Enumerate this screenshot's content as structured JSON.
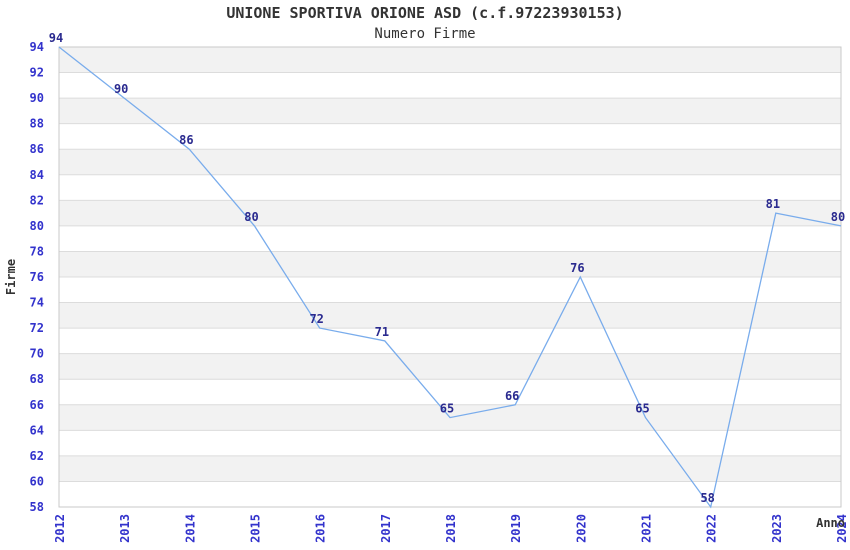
{
  "chart_data": {
    "type": "line",
    "title": "UNIONE SPORTIVA ORIONE ASD (c.f.97223930153)",
    "subtitle": "Numero Firme",
    "xlabel": "Anno",
    "ylabel": "Firme",
    "categories": [
      "2012",
      "2013",
      "2014",
      "2015",
      "2016",
      "2017",
      "2018",
      "2019",
      "2020",
      "2021",
      "2022",
      "2023",
      "2024"
    ],
    "values": [
      94,
      90,
      86,
      80,
      72,
      71,
      65,
      66,
      76,
      65,
      58,
      81,
      80
    ],
    "ylim": [
      58,
      94
    ],
    "ytick_step": 2,
    "legend": "none",
    "grid": "horizontal-bands",
    "colors": {
      "line": "#79ACEC",
      "tick_label": "#3333CC",
      "point_label": "#2A2A8F",
      "band": "#F2F2F2",
      "gridline": "#DCDCDC",
      "border": "#C9C9C9",
      "text": "#333333",
      "background": "#FFFFFF"
    }
  }
}
